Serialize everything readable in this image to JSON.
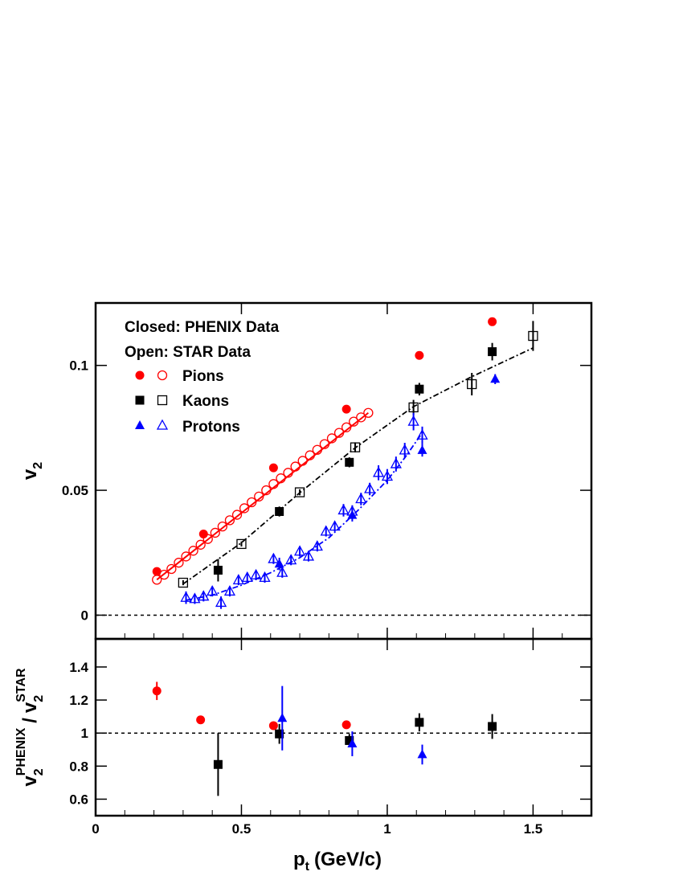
{
  "colors": {
    "pions": "#ff0000",
    "kaons": "#000000",
    "protons": "#0000ff",
    "frame": "#000000"
  },
  "legend": {
    "closed_label": "Closed: PHENIX Data",
    "open_label": "Open: STAR Data",
    "entries": [
      {
        "name": "Pions",
        "color": "#ff0000",
        "marker": "circle"
      },
      {
        "name": "Kaons",
        "color": "#000000",
        "marker": "square"
      },
      {
        "name": "Protons",
        "color": "#0000ff",
        "marker": "triangle"
      }
    ]
  },
  "axes": {
    "x_title": "p",
    "x_title_sub": "t",
    "x_title_unit": "(GeV/c)",
    "top_y_title": "v",
    "top_y_title_sub": "2",
    "bottom_y_title_num": "v",
    "bottom_y_title_num_sub": "2",
    "bottom_y_title_num_sup": "PHENIX",
    "bottom_y_title_sep": "/",
    "bottom_y_title_den": "v",
    "bottom_y_title_den_sub": "2",
    "bottom_y_title_den_sup": "STAR"
  },
  "chart_data": [
    {
      "type": "scatter",
      "panel": "top",
      "xlim": [
        0,
        1.7
      ],
      "ylim": [
        -0.0095,
        0.125
      ],
      "x_ticks": [
        {
          "value": 0,
          "label": ""
        },
        {
          "value": 0.5,
          "label": ""
        },
        {
          "value": 1,
          "label": ""
        },
        {
          "value": 1.5,
          "label": ""
        }
      ],
      "y_ticks": [
        {
          "value": 0,
          "label": "0"
        },
        {
          "value": 0.05,
          "label": "0.05"
        },
        {
          "value": 0.1,
          "label": "0.1"
        }
      ],
      "reference_line": 0,
      "series": [
        {
          "name": "Pions",
          "experiment": "PHENIX",
          "filled": true,
          "marker": "circle",
          "color": "#ff0000",
          "points": [
            [
              0.21,
              0.0175,
              0
            ],
            [
              0.37,
              0.0325,
              0
            ],
            [
              0.61,
              0.059,
              0
            ],
            [
              0.86,
              0.0825,
              0
            ],
            [
              1.11,
              0.104,
              0
            ],
            [
              1.36,
              0.1175,
              0
            ]
          ]
        },
        {
          "name": "Pions",
          "experiment": "STAR",
          "filled": false,
          "marker": "circle",
          "color": "#ff0000",
          "points": [
            [
              0.21,
              0.0142,
              0
            ],
            [
              0.235,
              0.0162,
              0
            ],
            [
              0.26,
              0.0185,
              0
            ],
            [
              0.285,
              0.021,
              0
            ],
            [
              0.31,
              0.0235,
              0
            ],
            [
              0.335,
              0.0258,
              0
            ],
            [
              0.36,
              0.0282,
              0
            ],
            [
              0.385,
              0.0305,
              0
            ],
            [
              0.41,
              0.033,
              0
            ],
            [
              0.435,
              0.0355,
              0
            ],
            [
              0.46,
              0.038,
              0
            ],
            [
              0.485,
              0.0402,
              0
            ],
            [
              0.51,
              0.0428,
              0
            ],
            [
              0.535,
              0.0452,
              0
            ],
            [
              0.56,
              0.0475,
              0
            ],
            [
              0.585,
              0.05,
              0
            ],
            [
              0.61,
              0.0525,
              0
            ],
            [
              0.635,
              0.0548,
              0
            ],
            [
              0.66,
              0.057,
              0
            ],
            [
              0.685,
              0.0595,
              0
            ],
            [
              0.71,
              0.0618,
              0
            ],
            [
              0.735,
              0.064,
              0
            ],
            [
              0.76,
              0.0662,
              0
            ],
            [
              0.785,
              0.0685,
              0
            ],
            [
              0.81,
              0.0708,
              0
            ],
            [
              0.835,
              0.073,
              0
            ],
            [
              0.86,
              0.0752,
              0
            ],
            [
              0.885,
              0.0775,
              0
            ],
            [
              0.91,
              0.0792,
              0
            ],
            [
              0.935,
              0.081,
              0
            ]
          ]
        },
        {
          "name": "Kaons",
          "experiment": "PHENIX",
          "filled": true,
          "marker": "square",
          "color": "#000000",
          "points": [
            [
              0.42,
              0.018,
              0.0045
            ],
            [
              0.63,
              0.0415,
              0.002
            ],
            [
              0.87,
              0.0612,
              0.002
            ],
            [
              1.11,
              0.0905,
              0.0025
            ],
            [
              1.36,
              0.1055,
              0.0035
            ]
          ]
        },
        {
          "name": "Kaons",
          "experiment": "STAR",
          "filled": false,
          "marker": "square",
          "color": "#000000",
          "points": [
            [
              0.3,
              0.013,
              0.001
            ],
            [
              0.5,
              0.0285,
              0.001
            ],
            [
              0.7,
              0.0492,
              0.0012
            ],
            [
              0.89,
              0.0672,
              0.002
            ],
            [
              1.09,
              0.0832,
              0.003
            ],
            [
              1.29,
              0.0925,
              0.0045
            ],
            [
              1.5,
              0.1118,
              0.006
            ]
          ]
        },
        {
          "name": "Protons",
          "experiment": "PHENIX",
          "filled": true,
          "marker": "triangle",
          "color": "#0000ff",
          "points": [
            [
              0.63,
              0.0205,
              0.0025
            ],
            [
              0.88,
              0.04,
              0.0025
            ],
            [
              1.12,
              0.066,
              0.0025
            ],
            [
              1.37,
              0.0945,
              0.002
            ]
          ]
        },
        {
          "name": "Protons",
          "experiment": "STAR",
          "filled": false,
          "marker": "triangle",
          "color": "#0000ff",
          "points": [
            [
              0.31,
              0.007,
              0.0025
            ],
            [
              0.34,
              0.0065,
              0.002
            ],
            [
              0.37,
              0.0075,
              0.002
            ],
            [
              0.4,
              0.0095,
              0.002
            ],
            [
              0.43,
              0.005,
              0.0025
            ],
            [
              0.46,
              0.0095,
              0.002
            ],
            [
              0.49,
              0.014,
              0.002
            ],
            [
              0.52,
              0.015,
              0.002
            ],
            [
              0.55,
              0.016,
              0.002
            ],
            [
              0.58,
              0.015,
              0.002
            ],
            [
              0.61,
              0.0225,
              0.002
            ],
            [
              0.64,
              0.017,
              0.002
            ],
            [
              0.67,
              0.022,
              0.002
            ],
            [
              0.7,
              0.0255,
              0.002
            ],
            [
              0.73,
              0.0235,
              0.002
            ],
            [
              0.76,
              0.0275,
              0.002
            ],
            [
              0.79,
              0.0335,
              0.002
            ],
            [
              0.82,
              0.0355,
              0.002
            ],
            [
              0.85,
              0.042,
              0.0025
            ],
            [
              0.88,
              0.0415,
              0.0025
            ],
            [
              0.91,
              0.0465,
              0.0025
            ],
            [
              0.94,
              0.0505,
              0.0025
            ],
            [
              0.97,
              0.057,
              0.003
            ],
            [
              1.0,
              0.0555,
              0.003
            ],
            [
              1.03,
              0.0605,
              0.003
            ],
            [
              1.06,
              0.066,
              0.003
            ],
            [
              1.09,
              0.0775,
              0.0035
            ],
            [
              1.12,
              0.072,
              0.0035
            ]
          ]
        }
      ],
      "fit_curves": [
        {
          "name": "Pions",
          "color": "#ff0000",
          "style": "solid",
          "points": [
            [
              0.21,
              0.0142
            ],
            [
              0.935,
              0.081
            ]
          ]
        },
        {
          "name": "Kaons",
          "color": "#000000",
          "style": "dashdot",
          "points": [
            [
              0.3,
              0.0125
            ],
            [
              0.5,
              0.029
            ],
            [
              0.7,
              0.049
            ],
            [
              0.89,
              0.067
            ],
            [
              1.09,
              0.0835
            ],
            [
              1.29,
              0.0955
            ],
            [
              1.5,
              0.107
            ]
          ]
        },
        {
          "name": "Protons",
          "color": "#0000ff",
          "style": "dashdot",
          "points": [
            [
              0.31,
              0.006
            ],
            [
              0.4,
              0.008
            ],
            [
              0.5,
              0.012
            ],
            [
              0.6,
              0.017
            ],
            [
              0.7,
              0.023
            ],
            [
              0.8,
              0.031
            ],
            [
              0.9,
              0.042
            ],
            [
              1.0,
              0.054
            ],
            [
              1.06,
              0.063
            ],
            [
              1.12,
              0.073
            ]
          ]
        }
      ]
    },
    {
      "type": "scatter",
      "panel": "bottom",
      "xlim": [
        0,
        1.7
      ],
      "ylim": [
        0.5,
        1.57
      ],
      "x_ticks": [
        {
          "value": 0,
          "label": "0"
        },
        {
          "value": 0.5,
          "label": "0.5"
        },
        {
          "value": 1,
          "label": "1"
        },
        {
          "value": 1.5,
          "label": "1.5"
        }
      ],
      "y_ticks": [
        {
          "value": 0.6,
          "label": "0.6"
        },
        {
          "value": 0.8,
          "label": "0.8"
        },
        {
          "value": 1,
          "label": "1"
        },
        {
          "value": 1.2,
          "label": "1.2"
        },
        {
          "value": 1.4,
          "label": "1.4"
        }
      ],
      "reference_line": 1,
      "series": [
        {
          "name": "Pions",
          "filled": true,
          "marker": "circle",
          "color": "#ff0000",
          "points": [
            [
              0.21,
              1.255,
              0.055
            ],
            [
              0.36,
              1.08,
              0
            ],
            [
              0.61,
              1.045,
              0
            ],
            [
              0.86,
              1.05,
              0
            ]
          ]
        },
        {
          "name": "Kaons",
          "filled": true,
          "marker": "square",
          "color": "#000000",
          "points": [
            [
              0.42,
              0.81,
              0.19
            ],
            [
              0.63,
              0.995,
              0.06
            ],
            [
              0.87,
              0.955,
              0.04
            ],
            [
              1.11,
              1.065,
              0.055
            ],
            [
              1.36,
              1.04,
              0.075
            ]
          ]
        },
        {
          "name": "Protons",
          "filled": true,
          "marker": "triangle",
          "color": "#0000ff",
          "points": [
            [
              0.64,
              1.09,
              0.195
            ],
            [
              0.88,
              0.935,
              0.075
            ],
            [
              1.12,
              0.87,
              0.06
            ]
          ]
        }
      ]
    }
  ]
}
